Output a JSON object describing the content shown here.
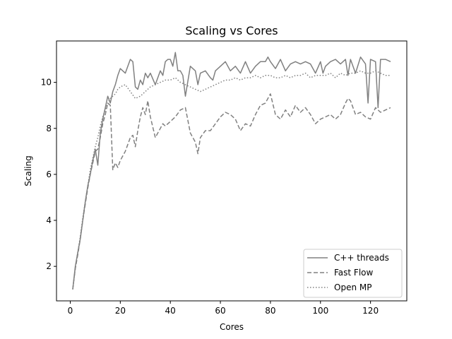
{
  "chart_data": {
    "type": "line",
    "title": "Scaling vs Cores",
    "xlabel": "Cores",
    "ylabel": "Scaling",
    "xlim": [
      -5.5,
      134.5
    ],
    "ylim": [
      0.5,
      11.8
    ],
    "xticks": [
      0,
      20,
      40,
      60,
      80,
      100,
      120
    ],
    "yticks": [
      2,
      4,
      6,
      8,
      10
    ],
    "grid": false,
    "legend_position": "lower-right",
    "series": [
      {
        "name": "C++ threads",
        "style": "solid",
        "color": "#808080",
        "x": [
          1,
          2,
          3,
          4,
          5,
          6,
          7,
          8,
          9,
          10,
          11,
          12,
          13,
          14,
          15,
          16,
          17,
          18,
          19,
          20,
          22,
          24,
          25,
          26,
          27,
          28,
          29,
          30,
          31,
          32,
          34,
          36,
          37,
          38,
          39,
          40,
          41,
          42,
          43,
          44,
          45,
          46,
          48,
          50,
          51,
          52,
          54,
          56,
          57,
          58,
          60,
          62,
          64,
          66,
          68,
          70,
          72,
          74,
          76,
          78,
          79,
          80,
          82,
          84,
          86,
          88,
          90,
          92,
          94,
          96,
          98,
          100,
          101,
          102,
          104,
          106,
          108,
          110,
          111,
          112,
          114,
          116,
          118,
          119,
          120,
          122,
          123,
          124,
          126,
          128
        ],
        "y": [
          1.0,
          2.0,
          2.6,
          3.2,
          4.0,
          4.8,
          5.5,
          6.0,
          6.6,
          7.1,
          6.4,
          7.8,
          8.4,
          8.9,
          9.4,
          9.1,
          9.6,
          9.9,
          10.3,
          10.6,
          10.4,
          11.0,
          10.9,
          9.8,
          9.7,
          10.1,
          9.9,
          10.4,
          10.2,
          10.4,
          9.9,
          10.5,
          10.3,
          10.9,
          11.0,
          11.0,
          10.7,
          11.3,
          10.5,
          10.5,
          10.3,
          9.4,
          10.7,
          10.5,
          9.9,
          10.4,
          10.5,
          10.2,
          10.1,
          10.5,
          10.7,
          10.9,
          10.5,
          10.7,
          10.4,
          10.9,
          10.4,
          10.7,
          10.9,
          10.9,
          11.1,
          10.9,
          10.6,
          11.0,
          10.5,
          10.8,
          10.9,
          10.8,
          10.9,
          10.8,
          10.4,
          10.9,
          10.4,
          10.7,
          10.9,
          11.0,
          10.8,
          11.0,
          10.3,
          11.0,
          10.4,
          11.1,
          10.8,
          9.1,
          11.0,
          10.9,
          8.9,
          11.0,
          11.0,
          10.9
        ]
      },
      {
        "name": "Fast Flow",
        "style": "dashed",
        "color": "#808080",
        "x": [
          1,
          2,
          3,
          4,
          5,
          6,
          7,
          8,
          9,
          10,
          11,
          12,
          13,
          14,
          15,
          16,
          17,
          18,
          19,
          20,
          22,
          24,
          25,
          26,
          27,
          28,
          29,
          30,
          31,
          32,
          34,
          36,
          37,
          38,
          40,
          42,
          44,
          46,
          48,
          50,
          51,
          52,
          54,
          56,
          58,
          60,
          62,
          64,
          66,
          68,
          70,
          72,
          74,
          76,
          78,
          80,
          82,
          84,
          86,
          88,
          90,
          92,
          94,
          96,
          98,
          100,
          102,
          104,
          106,
          108,
          110,
          111,
          112,
          114,
          116,
          118,
          120,
          122,
          124,
          126,
          128
        ],
        "y": [
          1.0,
          1.9,
          2.5,
          3.2,
          4.0,
          4.7,
          5.4,
          6.0,
          6.5,
          7.0,
          7.1,
          7.6,
          8.2,
          8.6,
          9.1,
          9.0,
          6.2,
          6.5,
          6.3,
          6.6,
          7.0,
          7.6,
          7.7,
          7.2,
          7.9,
          8.5,
          8.9,
          8.6,
          9.2,
          8.5,
          7.6,
          8.0,
          8.2,
          8.1,
          8.3,
          8.5,
          8.8,
          8.9,
          7.8,
          7.4,
          6.9,
          7.6,
          7.9,
          7.9,
          8.2,
          8.5,
          8.7,
          8.6,
          8.4,
          7.9,
          8.2,
          8.1,
          8.6,
          9.0,
          9.1,
          9.5,
          8.6,
          8.4,
          8.8,
          8.5,
          9.0,
          8.7,
          8.9,
          8.6,
          8.2,
          8.4,
          8.5,
          8.6,
          8.4,
          8.6,
          9.1,
          9.3,
          9.2,
          8.6,
          8.7,
          8.5,
          8.4,
          8.9,
          8.7,
          8.8,
          8.9
        ]
      },
      {
        "name": "Open MP",
        "style": "dotted",
        "color": "#808080",
        "x": [
          1,
          2,
          3,
          4,
          5,
          6,
          7,
          8,
          9,
          10,
          11,
          12,
          13,
          14,
          15,
          16,
          17,
          18,
          19,
          20,
          22,
          24,
          26,
          28,
          30,
          32,
          34,
          36,
          38,
          40,
          42,
          44,
          46,
          48,
          50,
          52,
          54,
          56,
          58,
          60,
          62,
          64,
          66,
          68,
          70,
          72,
          74,
          76,
          78,
          80,
          82,
          84,
          86,
          88,
          90,
          92,
          94,
          96,
          98,
          100,
          102,
          104,
          106,
          108,
          110,
          112,
          114,
          116,
          118,
          120,
          122,
          124,
          126,
          128
        ],
        "y": [
          1.0,
          1.9,
          2.6,
          3.3,
          4.1,
          4.8,
          5.5,
          6.2,
          6.7,
          7.2,
          7.6,
          8.1,
          8.5,
          8.8,
          9.1,
          9.3,
          9.4,
          9.5,
          9.7,
          9.8,
          9.9,
          9.6,
          9.3,
          9.4,
          9.6,
          9.8,
          9.9,
          10.0,
          10.1,
          10.1,
          10.2,
          10.0,
          9.9,
          9.8,
          9.7,
          9.6,
          9.7,
          9.8,
          9.9,
          10.0,
          10.1,
          10.1,
          10.2,
          10.1,
          10.2,
          10.2,
          10.3,
          10.2,
          10.3,
          10.3,
          10.2,
          10.2,
          10.3,
          10.2,
          10.3,
          10.3,
          10.4,
          10.2,
          10.3,
          10.3,
          10.3,
          10.4,
          10.2,
          10.4,
          10.3,
          10.4,
          10.4,
          10.5,
          10.4,
          10.4,
          10.5,
          10.4,
          10.3,
          10.3
        ]
      }
    ]
  }
}
